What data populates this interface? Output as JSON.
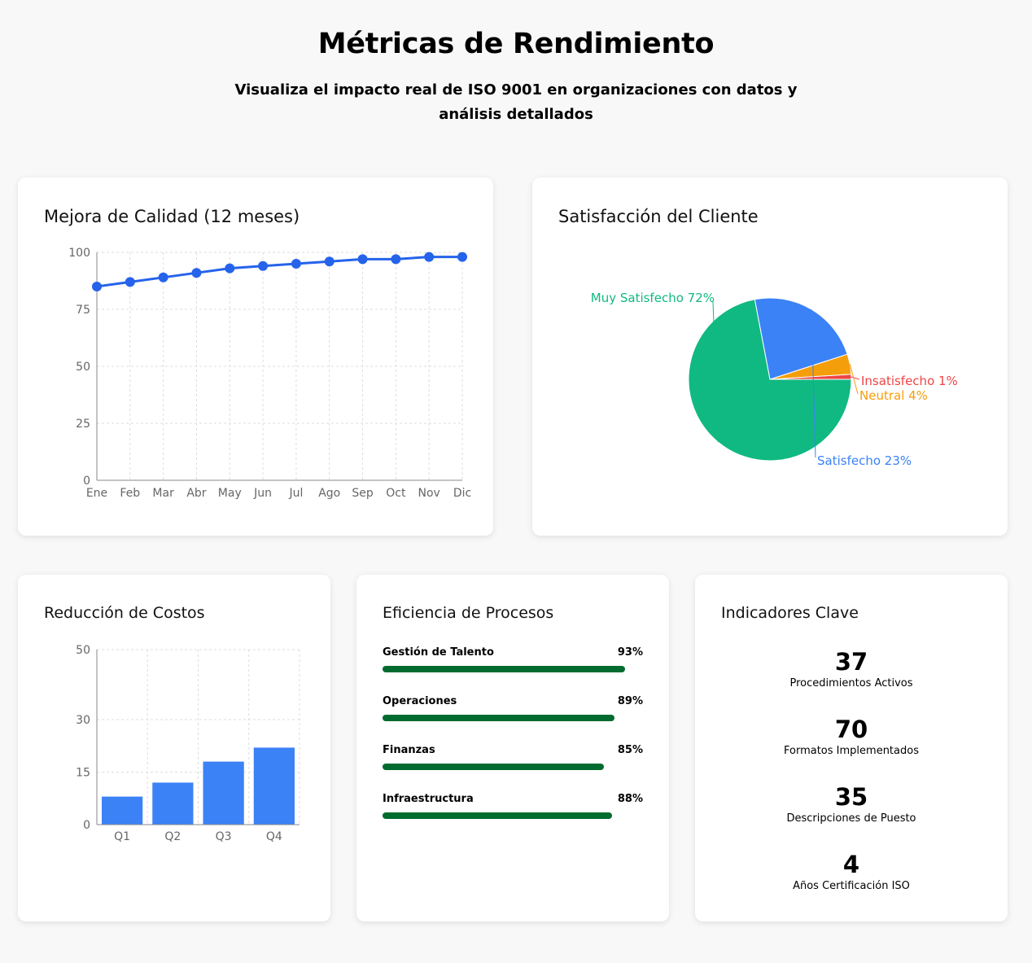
{
  "header": {
    "title": "Métricas de Rendimiento",
    "subtitle": "Visualiza el impacto real de ISO 9001 en organizaciones con datos y análisis detallados"
  },
  "colors": {
    "line": "#2563eb",
    "bar": "#3b82f6",
    "progress": "#006b2f",
    "pie_muy_satisfecho": "#10b981",
    "pie_satisfecho": "#3b82f6",
    "pie_neutral": "#f59e0b",
    "pie_insatisfecho": "#ef4444"
  },
  "quality": {
    "title": "Mejora de Calidad (12 meses)",
    "chart_data": {
      "type": "line",
      "categories": [
        "Ene",
        "Feb",
        "Mar",
        "Abr",
        "May",
        "Jun",
        "Jul",
        "Ago",
        "Sep",
        "Oct",
        "Nov",
        "Dic"
      ],
      "values": [
        85,
        87,
        89,
        91,
        93,
        94,
        95,
        96,
        97,
        97,
        98,
        98
      ],
      "ylim": [
        0,
        100
      ],
      "yticks": [
        0,
        25,
        50,
        75,
        100
      ],
      "grid": true
    }
  },
  "satisfaction": {
    "title": "Satisfacción del Cliente",
    "chart_data": {
      "type": "pie",
      "slices": [
        {
          "label": "Muy Satisfecho 72%",
          "value": 72,
          "color": "#10b981"
        },
        {
          "label": "Satisfecho 23%",
          "value": 23,
          "color": "#3b82f6"
        },
        {
          "label": "Neutral 4%",
          "value": 4,
          "color": "#f59e0b"
        },
        {
          "label": "Insatisfecho 1%",
          "value": 1,
          "color": "#ef4444"
        }
      ]
    }
  },
  "costs": {
    "title": "Reducción de Costos",
    "chart_data": {
      "type": "bar",
      "categories": [
        "Q1",
        "Q2",
        "Q3",
        "Q4"
      ],
      "values": [
        8,
        12,
        18,
        22
      ],
      "yticks": [
        0,
        15,
        30,
        50
      ],
      "ylim": [
        0,
        50
      ],
      "grid": true
    }
  },
  "efficiency": {
    "title": "Eficiencia de Procesos",
    "items": [
      {
        "label": "Gestión de Talento",
        "pct_text": "93%",
        "value": 93
      },
      {
        "label": "Operaciones",
        "pct_text": "89%",
        "value": 89
      },
      {
        "label": "Finanzas",
        "pct_text": "85%",
        "value": 85
      },
      {
        "label": "Infraestructura",
        "pct_text": "88%",
        "value": 88
      }
    ]
  },
  "indicators": {
    "title": "Indicadores Clave",
    "items": [
      {
        "value": "37",
        "label": "Procedimientos Activos"
      },
      {
        "value": "70",
        "label": "Formatos Implementados"
      },
      {
        "value": "35",
        "label": "Descripciones de Puesto"
      },
      {
        "value": "4",
        "label": "Años Certificación ISO"
      }
    ]
  }
}
